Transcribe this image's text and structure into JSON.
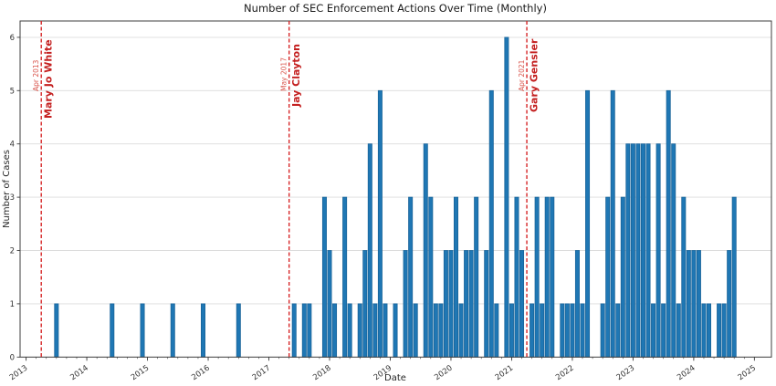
{
  "chart_data": {
    "type": "bar",
    "title": "Number of SEC Enforcement Actions Over Time (Monthly)",
    "xlabel": "Date",
    "ylabel": "Number of Cases",
    "ylim": [
      0,
      6
    ],
    "yticks": [
      0,
      1,
      2,
      3,
      4,
      5,
      6
    ],
    "xtick_years": [
      2013,
      2014,
      2015,
      2016,
      2017,
      2018,
      2019,
      2020,
      2021,
      2022,
      2023,
      2024,
      2025
    ],
    "grid": "horizontal-on",
    "legend": "none",
    "bar_color": "#1f77b4",
    "bar_edge_color": "#1a6499",
    "grid_color": "#dcdcdc",
    "spine_color": "#3c3c3c",
    "annotation_line_color": "#d62728",
    "annotation_date_color": "#d9534a",
    "annotation_name_color": "#c42020",
    "counts_by_month": {
      "2013-07": 1,
      "2014-06": 1,
      "2014-12": 1,
      "2015-06": 1,
      "2015-12": 1,
      "2016-07": 1,
      "2017-06": 1,
      "2017-08": 1,
      "2017-09": 1,
      "2017-12": 3,
      "2018-01": 2,
      "2018-02": 1,
      "2018-04": 3,
      "2018-05": 1,
      "2018-07": 1,
      "2018-08": 2,
      "2018-09": 4,
      "2018-10": 1,
      "2018-11": 5,
      "2018-12": 1,
      "2019-02": 1,
      "2019-04": 2,
      "2019-05": 3,
      "2019-06": 1,
      "2019-08": 4,
      "2019-09": 3,
      "2019-10": 1,
      "2019-11": 1,
      "2019-12": 2,
      "2020-01": 2,
      "2020-02": 3,
      "2020-03": 1,
      "2020-04": 2,
      "2020-05": 2,
      "2020-06": 3,
      "2020-08": 2,
      "2020-09": 5,
      "2020-10": 1,
      "2020-12": 6,
      "2021-01": 1,
      "2021-02": 3,
      "2021-03": 2,
      "2021-05": 1,
      "2021-06": 3,
      "2021-07": 1,
      "2021-08": 3,
      "2021-09": 3,
      "2021-11": 1,
      "2021-12": 1,
      "2022-01": 1,
      "2022-02": 2,
      "2022-03": 1,
      "2022-04": 5,
      "2022-07": 1,
      "2022-08": 3,
      "2022-09": 5,
      "2022-10": 1,
      "2022-11": 3,
      "2022-12": 4,
      "2023-01": 4,
      "2023-02": 4,
      "2023-03": 4,
      "2023-04": 4,
      "2023-05": 1,
      "2023-06": 4,
      "2023-07": 1,
      "2023-08": 5,
      "2023-09": 4,
      "2023-10": 1,
      "2023-11": 3,
      "2023-12": 2,
      "2024-01": 2,
      "2024-02": 2,
      "2024-03": 1,
      "2024-04": 1,
      "2024-06": 1,
      "2024-07": 1,
      "2024-08": 2,
      "2024-09": 3
    },
    "annotations": [
      {
        "date_label": "Apr 2013",
        "name": "Mary Jo White",
        "month": "2013-04"
      },
      {
        "date_label": "May 2017",
        "name": "Jay Clayton",
        "month": "2017-05"
      },
      {
        "date_label": "Apr 2021",
        "name": "Gary Gensler",
        "month": "2021-04"
      }
    ]
  }
}
